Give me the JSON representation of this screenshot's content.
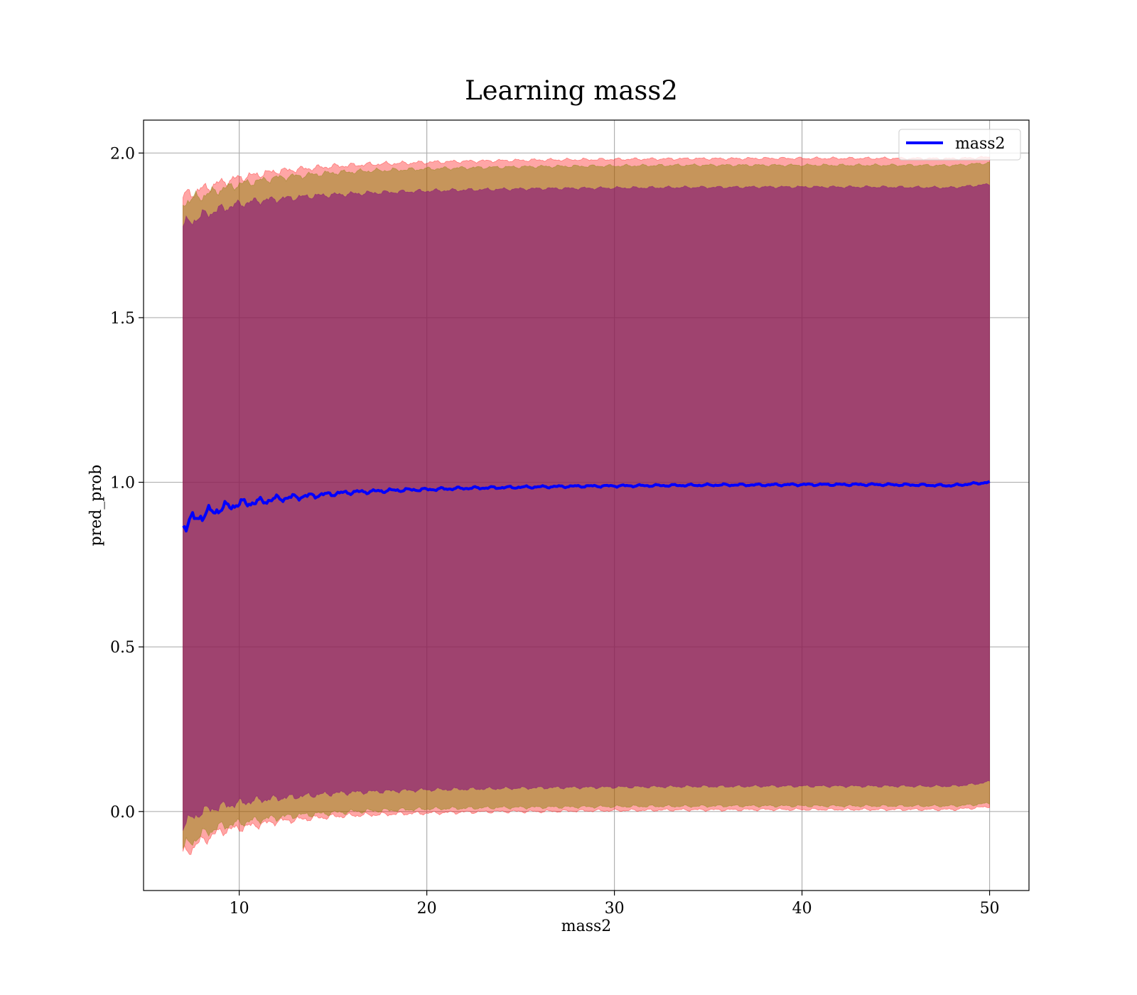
{
  "chart_data": {
    "type": "line",
    "title": "Learning mass2",
    "xlabel": "mass2",
    "ylabel": "pred_prob",
    "xlim": [
      4.9,
      52.1
    ],
    "ylim": [
      -0.24,
      2.1
    ],
    "xticks": [
      10,
      20,
      30,
      40,
      50
    ],
    "xtick_labels": [
      "10",
      "20",
      "30",
      "40",
      "50"
    ],
    "yticks": [
      0.0,
      0.5,
      1.0,
      1.5,
      2.0
    ],
    "ytick_labels": [
      "0.0",
      "0.5",
      "1.0",
      "1.5",
      "2.0"
    ],
    "grid": true,
    "legend": {
      "position": "top-right",
      "entries": [
        "mass2"
      ]
    },
    "colors": {
      "line": "#0000ff",
      "band_outer": "#ff0000",
      "band_middle": "#808000",
      "band_inner": "#800080",
      "grid": "#b0b0b0"
    },
    "series": [
      {
        "name": "mass2",
        "x": [
          7,
          8,
          9,
          10,
          11,
          12,
          13,
          14,
          15,
          16,
          17,
          18,
          19,
          20,
          22,
          24,
          26,
          28,
          30,
          32,
          34,
          36,
          38,
          40,
          42,
          44,
          46,
          48,
          49,
          50
        ],
        "y": [
          0.87,
          0.9,
          0.92,
          0.935,
          0.94,
          0.95,
          0.955,
          0.96,
          0.965,
          0.97,
          0.972,
          0.975,
          0.977,
          0.978,
          0.982,
          0.984,
          0.986,
          0.988,
          0.989,
          0.99,
          0.991,
          0.992,
          0.992,
          0.993,
          0.993,
          0.993,
          0.992,
          0.99,
          0.995,
          1.0
        ]
      }
    ],
    "bands": [
      {
        "x": [
          7,
          8,
          9,
          10,
          11,
          12,
          13,
          14,
          15,
          16,
          17,
          18,
          19,
          20,
          22,
          24,
          26,
          28,
          30,
          32,
          34,
          36,
          38,
          40,
          42,
          44,
          46,
          48,
          49,
          50
        ],
        "lower": [
          -0.13,
          -0.09,
          -0.06,
          -0.05,
          -0.04,
          -0.03,
          -0.025,
          -0.02,
          -0.015,
          -0.012,
          -0.01,
          -0.008,
          -0.006,
          -0.005,
          -0.002,
          0.0,
          0.0,
          0.002,
          0.003,
          0.004,
          0.005,
          0.005,
          0.006,
          0.006,
          0.006,
          0.006,
          0.006,
          0.006,
          0.01,
          0.015
        ],
        "upper": [
          1.87,
          1.89,
          1.91,
          1.925,
          1.935,
          1.945,
          1.95,
          1.955,
          1.96,
          1.963,
          1.966,
          1.968,
          1.97,
          1.972,
          1.975,
          1.977,
          1.979,
          1.98,
          1.981,
          1.982,
          1.983,
          1.983,
          1.984,
          1.984,
          1.984,
          1.984,
          1.984,
          1.983,
          1.985,
          1.988
        ]
      },
      {
        "x": [
          7,
          8,
          9,
          10,
          11,
          12,
          13,
          14,
          15,
          16,
          17,
          18,
          19,
          20,
          22,
          24,
          26,
          28,
          30,
          32,
          34,
          36,
          38,
          40,
          42,
          44,
          46,
          48,
          49,
          50
        ],
        "lower": [
          -0.11,
          -0.07,
          -0.045,
          -0.035,
          -0.025,
          -0.018,
          -0.012,
          -0.008,
          -0.004,
          0.0,
          0.002,
          0.004,
          0.006,
          0.008,
          0.01,
          0.012,
          0.013,
          0.014,
          0.015,
          0.016,
          0.016,
          0.017,
          0.017,
          0.017,
          0.017,
          0.017,
          0.017,
          0.017,
          0.02,
          0.025
        ],
        "upper": [
          1.85,
          1.87,
          1.89,
          1.905,
          1.915,
          1.925,
          1.93,
          1.935,
          1.94,
          1.943,
          1.946,
          1.948,
          1.95,
          1.952,
          1.955,
          1.957,
          1.959,
          1.96,
          1.961,
          1.962,
          1.963,
          1.963,
          1.963,
          1.963,
          1.963,
          1.963,
          1.963,
          1.962,
          1.966,
          1.97
        ]
      },
      {
        "x": [
          7,
          8,
          9,
          10,
          11,
          12,
          13,
          14,
          15,
          16,
          17,
          18,
          19,
          20,
          22,
          24,
          26,
          28,
          30,
          32,
          34,
          36,
          38,
          40,
          42,
          44,
          46,
          48,
          49,
          50
        ],
        "lower": [
          -0.04,
          0.0,
          0.015,
          0.025,
          0.035,
          0.04,
          0.045,
          0.05,
          0.055,
          0.058,
          0.06,
          0.062,
          0.064,
          0.066,
          0.068,
          0.07,
          0.072,
          0.073,
          0.074,
          0.075,
          0.076,
          0.076,
          0.077,
          0.077,
          0.077,
          0.077,
          0.077,
          0.077,
          0.082,
          0.09
        ],
        "upper": [
          1.78,
          1.81,
          1.83,
          1.845,
          1.855,
          1.86,
          1.865,
          1.87,
          1.873,
          1.876,
          1.879,
          1.881,
          1.883,
          1.885,
          1.888,
          1.89,
          1.892,
          1.893,
          1.894,
          1.895,
          1.896,
          1.896,
          1.897,
          1.897,
          1.897,
          1.897,
          1.896,
          1.895,
          1.9,
          1.905
        ]
      }
    ]
  }
}
